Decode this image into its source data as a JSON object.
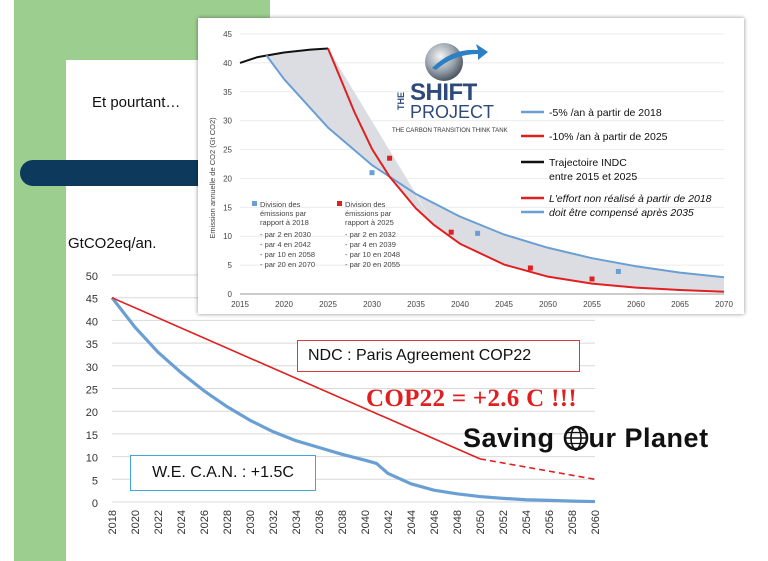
{
  "slide": {
    "subtitle": "Et pourtant…",
    "unit": "GtCO2eq/an.",
    "ndc_label": "NDC : Paris Agreement COP22",
    "cop_label": "COP22 = +2.6 C !!!",
    "wecan_label": "W.E. C.A.N. : +1.5C",
    "saving_pre": "Saving ",
    "saving_post": "ur Planet"
  },
  "chart_data": [
    {
      "type": "line",
      "title": "",
      "xlabel": "",
      "ylabel": "GtCO2eq/an.",
      "xlim": [
        2018,
        2060
      ],
      "ylim": [
        0,
        50
      ],
      "x_ticks": [
        "2018",
        "2020",
        "2022",
        "2024",
        "2026",
        "2028",
        "2030",
        "2032",
        "2034",
        "2036",
        "2038",
        "2040",
        "2042",
        "2044",
        "2046",
        "2048",
        "2050",
        "2052",
        "2054",
        "2056",
        "2058",
        "2060"
      ],
      "y_ticks": [
        "0",
        "5",
        "10",
        "15",
        "20",
        "25",
        "30",
        "35",
        "40",
        "45",
        "50"
      ],
      "grid": true,
      "colors": {
        "series_blue": "#6a9fd4",
        "series_red": "#e02020",
        "grid": "#d9d9d9"
      },
      "series": [
        {
          "name": "W.E. C.A.N. : +1.5C",
          "color": "#6a9fd4",
          "x": [
            2018,
            2020,
            2022,
            2024,
            2026,
            2028,
            2030,
            2032,
            2034,
            2036,
            2038,
            2040,
            2041,
            2042,
            2044,
            2046,
            2048,
            2050,
            2052,
            2054,
            2056,
            2058,
            2060
          ],
          "y": [
            45,
            38.5,
            33,
            28.5,
            24.5,
            21,
            18,
            15.5,
            13.5,
            12,
            10.5,
            9.2,
            8.5,
            6.3,
            4,
            2.6,
            1.8,
            1.2,
            0.8,
            0.5,
            0.35,
            0.2,
            0.1
          ]
        },
        {
          "name": "NDC : Paris Agreement COP22",
          "color": "#e02020",
          "x": [
            2018,
            2050
          ],
          "y": [
            45,
            9.5
          ]
        },
        {
          "name": "NDC : Paris Agreement COP22 (extension)",
          "color": "#e02020",
          "dashed": true,
          "x": [
            2050,
            2060
          ],
          "y": [
            9.5,
            5
          ]
        }
      ]
    },
    {
      "type": "line",
      "title": "",
      "xlabel": "",
      "ylabel": "Emission annuelle de CO2 (Gt CO2)",
      "xlim": [
        2015,
        2070
      ],
      "ylim": [
        0,
        45
      ],
      "x_ticks": [
        "2015",
        "2020",
        "2025",
        "2030",
        "2035",
        "2040",
        "2045",
        "2050",
        "2055",
        "2060",
        "2065",
        "2070"
      ],
      "y_ticks": [
        "0",
        "5",
        "10",
        "15",
        "20",
        "25",
        "30",
        "35",
        "40",
        "45"
      ],
      "legend_position": "right",
      "colors": {
        "inc": "#111111",
        "minus5": "#6a9fd4",
        "minus10": "#e02020",
        "fill": "#dcdde2"
      },
      "series": [
        {
          "name": "Trajectoire INDC entre 2015 et 2025",
          "color": "#111111",
          "x": [
            2015,
            2017,
            2020,
            2023,
            2025
          ],
          "y": [
            40,
            41,
            41.8,
            42.3,
            42.5
          ]
        },
        {
          "name": "-5% /an à partir de 2018",
          "color": "#6a9fd4",
          "x": [
            2018,
            2020,
            2025,
            2030,
            2035,
            2040,
            2045,
            2050,
            2055,
            2060,
            2065,
            2070
          ],
          "y": [
            41.3,
            37.2,
            28.8,
            22.3,
            17.3,
            13.4,
            10.3,
            8.0,
            6.2,
            4.8,
            3.7,
            2.9
          ]
        },
        {
          "name": "-10% /an à partir de 2025",
          "color": "#e02020",
          "x": [
            2025,
            2028,
            2030,
            2032,
            2035,
            2037,
            2040,
            2045,
            2050,
            2055,
            2060,
            2065,
            2070
          ],
          "y": [
            42.5,
            31.5,
            25.1,
            20.3,
            14.8,
            12.0,
            8.7,
            5.1,
            3.0,
            1.8,
            1.1,
            0.7,
            0.4
          ]
        }
      ],
      "markers_blue": [
        {
          "x": 2030,
          "y": 21
        },
        {
          "x": 2042,
          "y": 10.5
        },
        {
          "x": 2058,
          "y": 3.9
        }
      ],
      "markers_red": [
        {
          "x": 2032,
          "y": 23.5
        },
        {
          "x": 2039,
          "y": 10.7
        },
        {
          "x": 2048,
          "y": 4.5
        },
        {
          "x": 2055,
          "y": 2.6
        }
      ],
      "legend": {
        "minus5": "-5% /an à partir de 2018",
        "minus10": "-10% /an à partir de 2025",
        "inc1": "Trajectoire INDC",
        "inc2": "entre 2015 et 2025",
        "effort1": "L'effort non réalisé à partir de 2018",
        "effort2": "doit être compensé après 2035"
      },
      "division_blue": [
        "Division des",
        "émissions par",
        "rapport à 2018",
        "- par 2 en 2030",
        "- par 4 en 2042",
        "- par 10 en 2058",
        "- par 20 en 2070"
      ],
      "division_red": [
        "Division des",
        "émissions par",
        "rapport à 2025",
        "- par 2 en 2032",
        "- par 4 en 2039",
        "- par 10 en 2048",
        "- par 20 en 2055"
      ]
    }
  ],
  "logo": {
    "the": "THE",
    "shift": "SHIFT",
    "project": "PROJECT",
    "tagline": "THE CARBON TRANSITION THINK TANK"
  }
}
